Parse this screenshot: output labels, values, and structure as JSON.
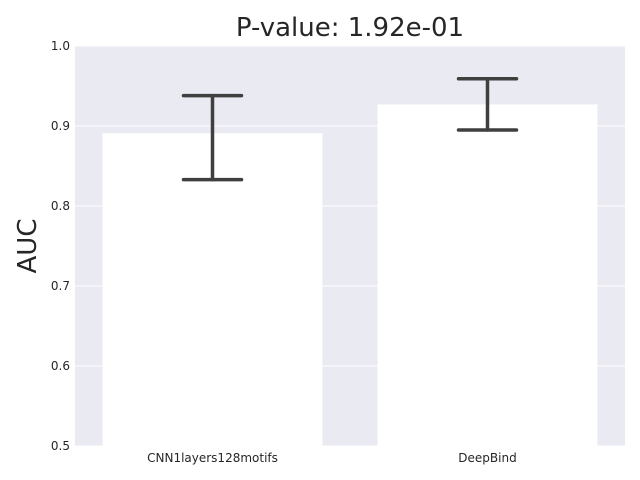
{
  "chart_data": {
    "type": "bar",
    "title": "P-value: 1.92e-01",
    "xlabel": "",
    "ylabel": "AUC",
    "ylim": [
      0.5,
      1.0
    ],
    "yticks": [
      "0.5",
      "0.6",
      "0.7",
      "0.8",
      "0.9",
      "1.0"
    ],
    "categories": [
      "CNN1layers128motifs",
      "DeepBind"
    ],
    "values": [
      0.891,
      0.927
    ],
    "error_low": [
      0.833,
      0.895
    ],
    "error_high": [
      0.938,
      0.959
    ],
    "grid": true,
    "colors": {
      "background": "#eaeaf2",
      "bar": "#ffffff",
      "error": "#3f3f3f",
      "grid": "#ffffff"
    }
  }
}
